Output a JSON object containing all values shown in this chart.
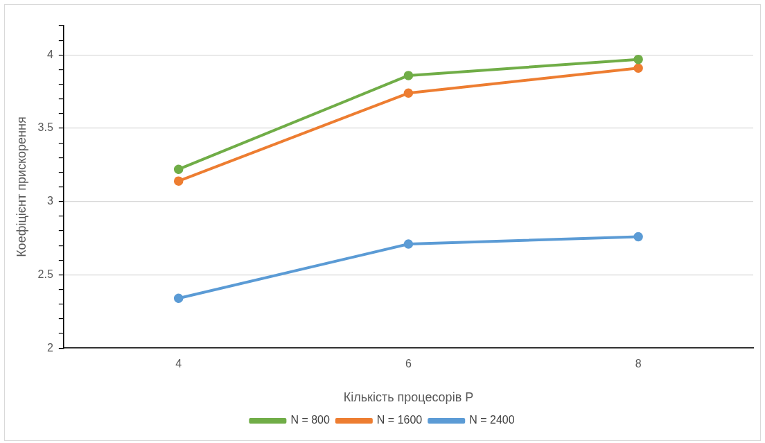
{
  "chart_data": {
    "type": "line",
    "xlabel": "Кількість процесорів P",
    "ylabel": "Коефіцієнт прискорення",
    "categories": [
      "4",
      "6",
      "8"
    ],
    "series": [
      {
        "name": "N = 800",
        "color": "#70ad47",
        "values": [
          3.22,
          3.86,
          3.97
        ]
      },
      {
        "name": "N = 1600",
        "color": "#ed7d31",
        "values": [
          3.14,
          3.74,
          3.91
        ]
      },
      {
        "name": "N = 2400",
        "color": "#5b9bd5",
        "values": [
          2.34,
          2.71,
          2.76
        ]
      }
    ],
    "ylim": [
      2,
      4.2
    ],
    "yticks": [
      2,
      {
        "value": 2.1,
        "label": null
      },
      {
        "value": 2.2,
        "label": null
      },
      {
        "value": 2.3,
        "label": null
      },
      {
        "value": 2.4,
        "label": null
      },
      2.5,
      {
        "value": 2.6,
        "label": null
      },
      {
        "value": 2.7,
        "label": null
      },
      {
        "value": 2.8,
        "label": null
      },
      {
        "value": 2.9,
        "label": null
      },
      3,
      {
        "value": 3.1,
        "label": null
      },
      {
        "value": 3.2,
        "label": null
      },
      {
        "value": 3.3,
        "label": null
      },
      {
        "value": 3.4,
        "label": null
      },
      3.5,
      {
        "value": 3.6,
        "label": null
      },
      {
        "value": 3.7,
        "label": null
      },
      {
        "value": 3.8,
        "label": null
      },
      {
        "value": 3.9,
        "label": null
      },
      4,
      {
        "value": 4.1,
        "label": null
      },
      {
        "value": 4.2,
        "label": null
      }
    ],
    "grid": "y",
    "legend": "bottom",
    "marker": "circle",
    "line_style": "solid"
  }
}
